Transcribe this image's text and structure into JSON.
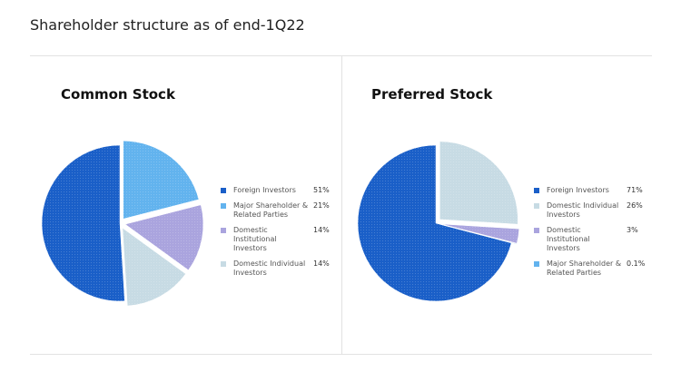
{
  "page_title": "Shareholder structure as of end-1Q22",
  "chart_data": [
    {
      "type": "pie",
      "title": "Common Stock",
      "categories": [
        "Foreign Investors",
        "Major Shareholder & Related Parties",
        "Domestic Institutional Investors",
        "Domestic Individual Investors"
      ],
      "values": [
        51,
        21,
        14,
        14
      ],
      "value_labels": [
        "51%",
        "21%",
        "14%",
        "14%"
      ],
      "colors": [
        "#1a5fc8",
        "#62b3ee",
        "#aaa4de",
        "#c7dbe4"
      ]
    },
    {
      "type": "pie",
      "title": "Preferred Stock",
      "categories": [
        "Foreign Investors",
        "Domestic Individual Investors",
        "Domestic Institutional Investors",
        "Major Shareholder & Related Parties"
      ],
      "values": [
        71,
        26,
        3,
        0.1
      ],
      "value_labels": [
        "71%",
        "26%",
        "3%",
        "0.1%"
      ],
      "colors": [
        "#1a5fc8",
        "#c7dbe4",
        "#aaa4de",
        "#62b3ee"
      ]
    }
  ]
}
